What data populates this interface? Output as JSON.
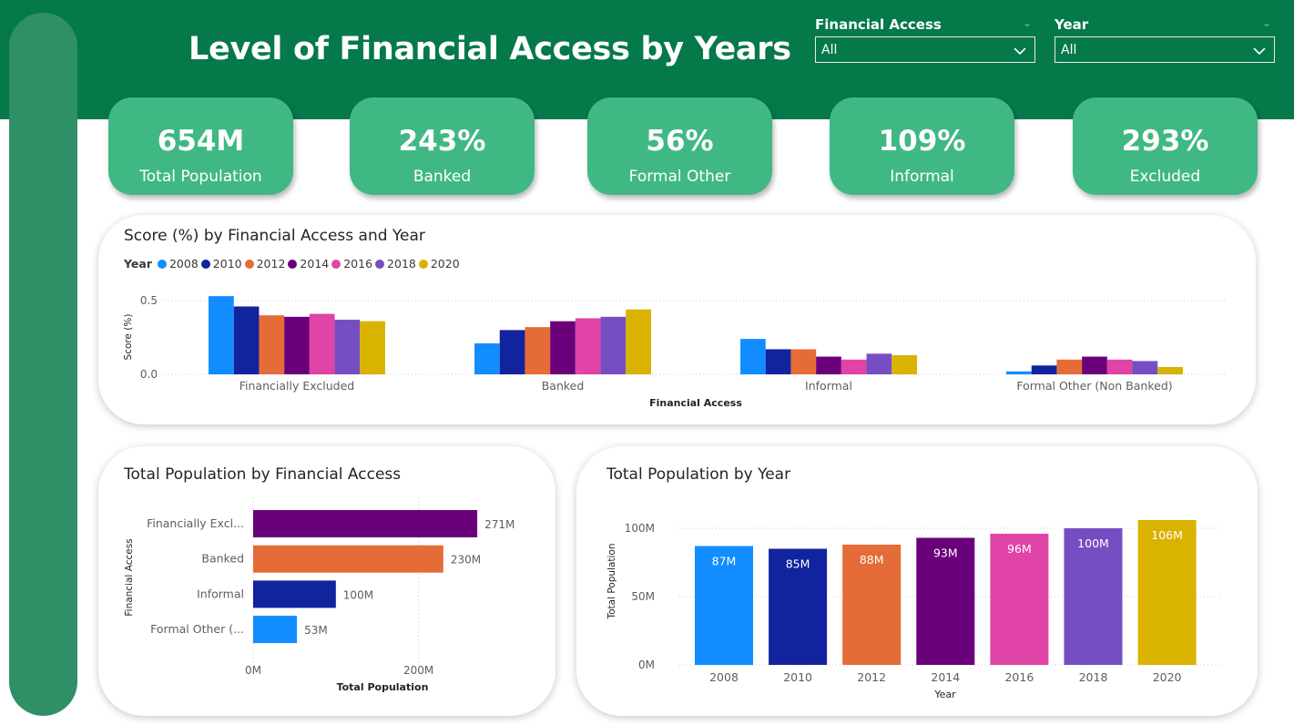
{
  "page": {
    "title": "Level of Financial Access by Years"
  },
  "slicers": [
    {
      "title": "Financial Access",
      "value": "All"
    },
    {
      "title": "Year",
      "value": "All"
    }
  ],
  "kpis": [
    {
      "value": "654M",
      "label": "Total Population"
    },
    {
      "value": "243%",
      "label": "Banked"
    },
    {
      "value": "56%",
      "label": "Formal Other"
    },
    {
      "value": "109%",
      "label": "Informal"
    },
    {
      "value": "293%",
      "label": "Excluded"
    }
  ],
  "colors": {
    "header": "#05794a",
    "kpi": "#40b884",
    "sidebar": "#2f8f67",
    "years": [
      "#118dff",
      "#12239e",
      "#e66c37",
      "#6b007b",
      "#e044a7",
      "#744ec2",
      "#d9b300"
    ]
  },
  "chart_data": [
    {
      "type": "bar",
      "title": "Score (%) by Financial Access and Year",
      "legend_title": "Year",
      "legend_position": "top-left",
      "xlabel": "Financial Access",
      "ylabel": "Score (%)",
      "ylim": [
        0,
        0.55
      ],
      "yticks": [
        "0.0",
        "0.5"
      ],
      "categories": [
        "Financially Excluded",
        "Banked",
        "Informal",
        "Formal Other (Non Banked)"
      ],
      "series": [
        {
          "name": "2008",
          "values": [
            0.53,
            0.21,
            0.24,
            0.02
          ]
        },
        {
          "name": "2010",
          "values": [
            0.46,
            0.3,
            0.17,
            0.06
          ]
        },
        {
          "name": "2012",
          "values": [
            0.4,
            0.32,
            0.17,
            0.1
          ]
        },
        {
          "name": "2014",
          "values": [
            0.39,
            0.36,
            0.12,
            0.12
          ]
        },
        {
          "name": "2016",
          "values": [
            0.41,
            0.38,
            0.1,
            0.1
          ]
        },
        {
          "name": "2018",
          "values": [
            0.37,
            0.39,
            0.14,
            0.09
          ]
        },
        {
          "name": "2020",
          "values": [
            0.36,
            0.44,
            0.13,
            0.05
          ]
        }
      ],
      "grid": true
    },
    {
      "type": "bar",
      "orientation": "horizontal",
      "title": "Total Population by Financial Access",
      "xlabel": "Total Population",
      "ylabel": "Financial Access",
      "categories": [
        "Financially Excl...",
        "Banked",
        "Informal",
        "Formal Other (..."
      ],
      "values": [
        271,
        230,
        100,
        53
      ],
      "value_labels": [
        "271M",
        "230M",
        "100M",
        "53M"
      ],
      "colors": [
        "#6b007b",
        "#e66c37",
        "#12239e",
        "#118dff"
      ],
      "xlim": [
        0,
        300
      ],
      "xticks": [
        "0M",
        "200M"
      ],
      "grid": true
    },
    {
      "type": "bar",
      "title": "Total Population by Year",
      "xlabel": "Year",
      "ylabel": "Total Population",
      "categories": [
        "2008",
        "2010",
        "2012",
        "2014",
        "2016",
        "2018",
        "2020"
      ],
      "values": [
        87,
        85,
        88,
        93,
        96,
        100,
        106
      ],
      "value_labels": [
        "87M",
        "85M",
        "88M",
        "93M",
        "96M",
        "100M",
        "106M"
      ],
      "ylim": [
        0,
        100
      ],
      "yticks": [
        "0M",
        "50M",
        "100M"
      ],
      "grid": true
    }
  ]
}
